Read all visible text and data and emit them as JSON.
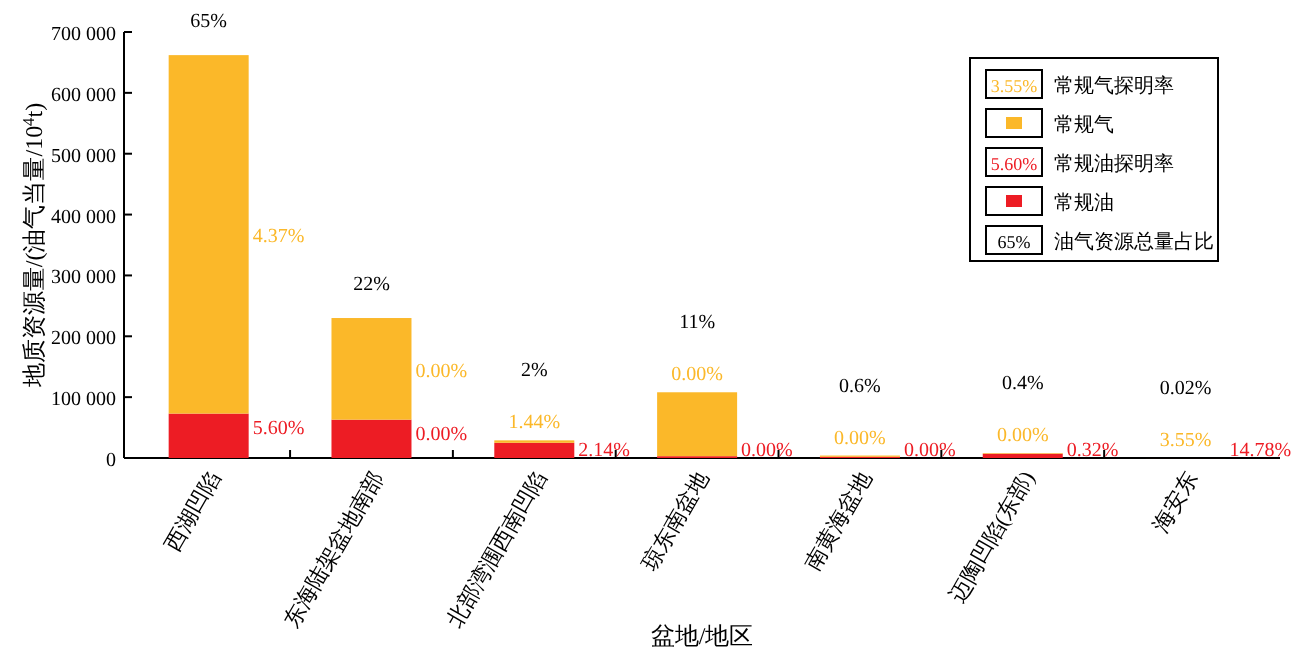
{
  "chart_data": {
    "type": "bar",
    "stacked": true,
    "xlabel": "盆地/地区",
    "ylabel": "地质资源量/(油气当量/10$^{4}$t)",
    "categories": [
      "西湖凹陷",
      "东海陆架盆地南部",
      "北部湾涠西南凹陷",
      "琼东南盆地",
      "南黄海盆地",
      "迈陶凹陷(东部)",
      "海安东"
    ],
    "series": [
      {
        "name": "常规油",
        "color": "#ed1c24",
        "values": [
          73000,
          63000,
          25000,
          3000,
          2000,
          7000,
          0
        ]
      },
      {
        "name": "常规气",
        "color": "#fbb829",
        "values": [
          589000,
          167000,
          4000,
          105000,
          2000,
          1000,
          0
        ]
      }
    ],
    "ylim": [
      0,
      700000
    ],
    "yticks": [
      0,
      {
        "value": 100000,
        "label": "100 000"
      },
      {
        "value": 200000,
        "label": "200 000"
      },
      {
        "value": 300000,
        "label": "300 000"
      },
      {
        "value": 400000,
        "label": "400 000"
      },
      {
        "value": 500000,
        "label": "500 000"
      },
      {
        "value": 600000,
        "label": "600 000"
      },
      {
        "value": 700000,
        "label": "700 000"
      }
    ],
    "legend": "top right",
    "annotations": [
      "3.55%",
      "常规气探明率",
      "5.60%",
      "常规油探明率",
      "65%",
      "油气资源总量占比",
      "4.37%",
      {
        "text": "5.60%",
        "x": "西湖凹陷",
        "y": 73000
      },
      {
        "text": "65%",
        "x": "西湖凹陷",
        "y": 662000
      },
      {
        "text": "0.00%",
        "x": "东海陆架盆地南部",
        "y": 230000
      },
      {
        "text": "0.00%",
        "x": "东海陆架盆地南部",
        "y": 63000
      },
      {
        "text": "22%",
        "x": "东海陆架盆地南部",
        "y": 230000
      },
      {
        "text": "1.44%",
        "x": "北部湾涠西南凹陷",
        "y": 29000
      },
      {
        "text": "2.14%",
        "x": "北部湾涠西南凹陷",
        "y": 25000
      },
      {
        "text": "2%",
        "x": "北部湾涠西南凹陷",
        "y": 29000
      },
      {
        "text": "0.00%",
        "x": "琼东南盆地",
        "y": 108000
      },
      {
        "text": "0.00%",
        "x": "琼东南盆地",
        "y": 3000
      },
      {
        "text": "11%",
        "x": "琼东南盆地",
        "y": 108000
      },
      {
        "text": "0.00%",
        "x": "南黄海盆地",
        "y": 4000
      },
      {
        "text": "0.00%",
        "x": "南黄海盆地",
        "y": 2000
      },
      {
        "text": "0.6%",
        "x": "南黄海盆地",
        "y": 4000
      },
      {
        "text": "0.00%",
        "x": "迈陶凹陷(东部)",
        "y": 8000
      },
      {
        "text": "0.32%",
        "x": "迈陶凹陷(东部)",
        "y": 7000
      },
      {
        "text": "0.4%",
        "x": "迈陶凹陷(东部)",
        "y": 8000
      },
      {
        "text": "3.55%",
        "x": "海安东",
        "y": 0
      },
      {
        "text": "14.78%",
        "x": "海安东",
        "y": 0
      },
      {
        "text": "0.02%",
        "x": "海安东",
        "y": 0
      }
    ]
  }
}
